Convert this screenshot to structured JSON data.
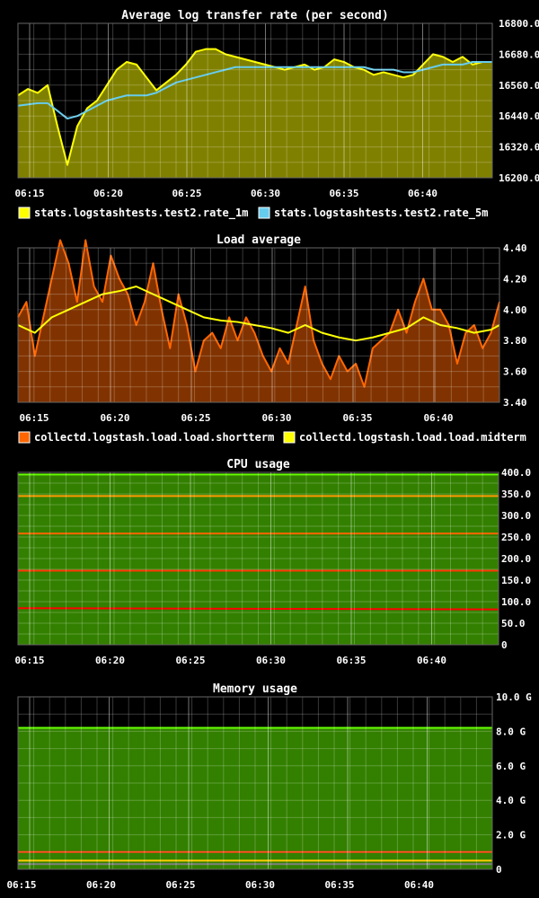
{
  "chart_data": [
    {
      "type": "area",
      "title": "Average log transfer rate (per second)",
      "x_labels": [
        "06:15",
        "06:20",
        "06:25",
        "06:30",
        "06:35",
        "06:40"
      ],
      "ylim": [
        16200,
        16800
      ],
      "y_ticks": [
        "16800.0",
        "16680.0",
        "16560.0",
        "16440.0",
        "16320.0",
        "16200.0"
      ],
      "grid": true,
      "legend_position": "bottom",
      "series": [
        {
          "name": "stats.logstashtests.test2.rate_1m",
          "color": "#ffff00",
          "fill": "#808000",
          "points": [
            [
              0,
              16520
            ],
            [
              1,
              16545
            ],
            [
              2,
              16530
            ],
            [
              3,
              16560
            ],
            [
              4,
              16400
            ],
            [
              5,
              16250
            ],
            [
              6,
              16400
            ],
            [
              7,
              16470
            ],
            [
              8,
              16500
            ],
            [
              9,
              16560
            ],
            [
              10,
              16620
            ],
            [
              11,
              16650
            ],
            [
              12,
              16640
            ],
            [
              13,
              16590
            ],
            [
              14,
              16540
            ],
            [
              15,
              16570
            ],
            [
              16,
              16600
            ],
            [
              17,
              16640
            ],
            [
              18,
              16690
            ],
            [
              19,
              16700
            ],
            [
              20,
              16700
            ],
            [
              21,
              16680
            ],
            [
              22,
              16670
            ],
            [
              23,
              16660
            ],
            [
              24,
              16650
            ],
            [
              25,
              16640
            ],
            [
              26,
              16630
            ],
            [
              27,
              16620
            ],
            [
              28,
              16630
            ],
            [
              29,
              16640
            ],
            [
              30,
              16620
            ],
            [
              31,
              16630
            ],
            [
              32,
              16660
            ],
            [
              33,
              16650
            ],
            [
              34,
              16630
            ],
            [
              35,
              16620
            ],
            [
              36,
              16600
            ],
            [
              37,
              16610
            ],
            [
              38,
              16600
            ],
            [
              39,
              16590
            ],
            [
              40,
              16600
            ],
            [
              41,
              16640
            ],
            [
              42,
              16680
            ],
            [
              43,
              16670
            ],
            [
              44,
              16650
            ],
            [
              45,
              16670
            ],
            [
              46,
              16640
            ],
            [
              47,
              16650
            ],
            [
              48,
              16650
            ]
          ]
        },
        {
          "name": "stats.logstashtests.test2.rate_5m",
          "color": "#66ccee",
          "points": [
            [
              0,
              16480
            ],
            [
              2,
              16490
            ],
            [
              3,
              16490
            ],
            [
              4,
              16460
            ],
            [
              5,
              16430
            ],
            [
              6,
              16440
            ],
            [
              7,
              16460
            ],
            [
              8,
              16480
            ],
            [
              9,
              16500
            ],
            [
              10,
              16510
            ],
            [
              11,
              16520
            ],
            [
              12,
              16520
            ],
            [
              13,
              16520
            ],
            [
              14,
              16530
            ],
            [
              15,
              16550
            ],
            [
              16,
              16570
            ],
            [
              17,
              16580
            ],
            [
              18,
              16590
            ],
            [
              19,
              16600
            ],
            [
              20,
              16610
            ],
            [
              21,
              16620
            ],
            [
              22,
              16630
            ],
            [
              23,
              16630
            ],
            [
              24,
              16630
            ],
            [
              25,
              16630
            ],
            [
              26,
              16630
            ],
            [
              27,
              16630
            ],
            [
              28,
              16630
            ],
            [
              29,
              16630
            ],
            [
              30,
              16630
            ],
            [
              31,
              16630
            ],
            [
              32,
              16630
            ],
            [
              33,
              16630
            ],
            [
              34,
              16630
            ],
            [
              35,
              16630
            ],
            [
              36,
              16620
            ],
            [
              37,
              16620
            ],
            [
              38,
              16620
            ],
            [
              39,
              16610
            ],
            [
              40,
              16610
            ],
            [
              41,
              16620
            ],
            [
              42,
              16630
            ],
            [
              43,
              16640
            ],
            [
              44,
              16640
            ],
            [
              45,
              16640
            ],
            [
              46,
              16650
            ],
            [
              47,
              16650
            ],
            [
              48,
              16650
            ]
          ]
        }
      ]
    },
    {
      "type": "area",
      "title": "Load average",
      "x_labels": [
        "06:15",
        "06:20",
        "06:25",
        "06:30",
        "06:35",
        "06:40"
      ],
      "ylim": [
        3.4,
        4.4
      ],
      "y_ticks": [
        "4.40",
        "4.20",
        "4.00",
        "3.80",
        "3.60",
        "3.40"
      ],
      "grid": true,
      "legend_position": "bottom",
      "series": [
        {
          "name": "collectd.logstash.load.load.shortterm",
          "color": "#ff6600",
          "fill": "#803300",
          "points": [
            [
              0,
              3.95
            ],
            [
              1,
              4.05
            ],
            [
              2,
              3.7
            ],
            [
              3,
              3.95
            ],
            [
              4,
              4.2
            ],
            [
              5,
              4.45
            ],
            [
              6,
              4.3
            ],
            [
              7,
              4.05
            ],
            [
              8,
              4.45
            ],
            [
              9,
              4.15
            ],
            [
              10,
              4.05
            ],
            [
              11,
              4.35
            ],
            [
              12,
              4.2
            ],
            [
              13,
              4.1
            ],
            [
              14,
              3.9
            ],
            [
              15,
              4.05
            ],
            [
              16,
              4.3
            ],
            [
              17,
              4.0
            ],
            [
              18,
              3.75
            ],
            [
              19,
              4.1
            ],
            [
              20,
              3.9
            ],
            [
              21,
              3.6
            ],
            [
              22,
              3.8
            ],
            [
              23,
              3.85
            ],
            [
              24,
              3.75
            ],
            [
              25,
              3.95
            ],
            [
              26,
              3.8
            ],
            [
              27,
              3.95
            ],
            [
              28,
              3.85
            ],
            [
              29,
              3.7
            ],
            [
              30,
              3.6
            ],
            [
              31,
              3.75
            ],
            [
              32,
              3.65
            ],
            [
              33,
              3.9
            ],
            [
              34,
              4.15
            ],
            [
              35,
              3.8
            ],
            [
              36,
              3.65
            ],
            [
              37,
              3.55
            ],
            [
              38,
              3.7
            ],
            [
              39,
              3.6
            ],
            [
              40,
              3.65
            ],
            [
              41,
              3.5
            ],
            [
              42,
              3.75
            ],
            [
              43,
              3.8
            ],
            [
              44,
              3.85
            ],
            [
              45,
              4.0
            ],
            [
              46,
              3.85
            ],
            [
              47,
              4.05
            ],
            [
              48,
              4.2
            ],
            [
              49,
              4.0
            ],
            [
              50,
              4.0
            ],
            [
              51,
              3.9
            ],
            [
              52,
              3.65
            ],
            [
              53,
              3.85
            ],
            [
              54,
              3.9
            ],
            [
              55,
              3.75
            ],
            [
              56,
              3.85
            ],
            [
              57,
              4.05
            ]
          ]
        },
        {
          "name": "collectd.logstash.load.load.midterm",
          "color": "#ffff00",
          "points": [
            [
              0,
              3.9
            ],
            [
              2,
              3.85
            ],
            [
              4,
              3.95
            ],
            [
              6,
              4.0
            ],
            [
              8,
              4.05
            ],
            [
              10,
              4.1
            ],
            [
              12,
              4.12
            ],
            [
              14,
              4.15
            ],
            [
              16,
              4.1
            ],
            [
              18,
              4.05
            ],
            [
              20,
              4.0
            ],
            [
              22,
              3.95
            ],
            [
              24,
              3.93
            ],
            [
              26,
              3.92
            ],
            [
              28,
              3.9
            ],
            [
              30,
              3.88
            ],
            [
              32,
              3.85
            ],
            [
              34,
              3.9
            ],
            [
              36,
              3.85
            ],
            [
              38,
              3.82
            ],
            [
              40,
              3.8
            ],
            [
              42,
              3.82
            ],
            [
              44,
              3.85
            ],
            [
              46,
              3.88
            ],
            [
              48,
              3.95
            ],
            [
              50,
              3.9
            ],
            [
              52,
              3.88
            ],
            [
              54,
              3.85
            ],
            [
              56,
              3.87
            ],
            [
              57,
              3.9
            ]
          ]
        }
      ]
    },
    {
      "type": "area",
      "title": "CPU usage",
      "x_labels": [
        "06:15",
        "06:20",
        "06:25",
        "06:30",
        "06:35",
        "06:40"
      ],
      "ylim": [
        0,
        400
      ],
      "y_ticks": [
        "400.0",
        "350.0",
        "300.0",
        "250.0",
        "200.0",
        "150.0",
        "100.0",
        "50.0",
        "0"
      ],
      "grid": true,
      "series": [
        {
          "name": "",
          "color": "#ff0000",
          "fill": "#7a0000",
          "points": [
            [
              0,
              85
            ],
            [
              60,
              82
            ]
          ]
        },
        {
          "name": "",
          "color": "#ff3300",
          "fill": "#8a1a00",
          "points": [
            [
              0,
              172
            ],
            [
              60,
              172
            ]
          ]
        },
        {
          "name": "",
          "color": "#ff6600",
          "fill": "#803300",
          "points": [
            [
              0,
              258
            ],
            [
              60,
              258
            ]
          ]
        },
        {
          "name": "",
          "color": "#ff9900",
          "fill": "#804d00",
          "points": [
            [
              0,
              345
            ],
            [
              60,
              345
            ]
          ]
        },
        {
          "name": "",
          "color": "#66ff00",
          "fill": "#338000",
          "points": [
            [
              0,
              395
            ],
            [
              60,
              395
            ]
          ]
        }
      ]
    },
    {
      "type": "area",
      "title": "Memory usage",
      "x_labels": [
        "06:15",
        "06:20",
        "06:25",
        "06:30",
        "06:35",
        "06:40"
      ],
      "ylim": [
        0,
        10
      ],
      "y_ticks": [
        "10.0 G",
        "8.0 G",
        "6.0 G",
        "4.0 G",
        "2.0 G",
        "0"
      ],
      "grid": true,
      "series": [
        {
          "name": "",
          "color": "#808080",
          "fill": "#404040",
          "points": [
            [
              0,
              0.3
            ],
            [
              60,
              0.3
            ]
          ]
        },
        {
          "name": "",
          "color": "#ffcc00",
          "fill": "#804d00",
          "points": [
            [
              0,
              0.5
            ],
            [
              60,
              0.5
            ]
          ]
        },
        {
          "name": "",
          "color": "#ff3300",
          "fill": "#801a00",
          "points": [
            [
              0,
              1.0
            ],
            [
              60,
              1.0
            ]
          ]
        },
        {
          "name": "",
          "color": "#66ff00",
          "fill": "#338000",
          "points": [
            [
              0,
              8.2
            ],
            [
              60,
              8.2
            ]
          ]
        }
      ]
    }
  ]
}
